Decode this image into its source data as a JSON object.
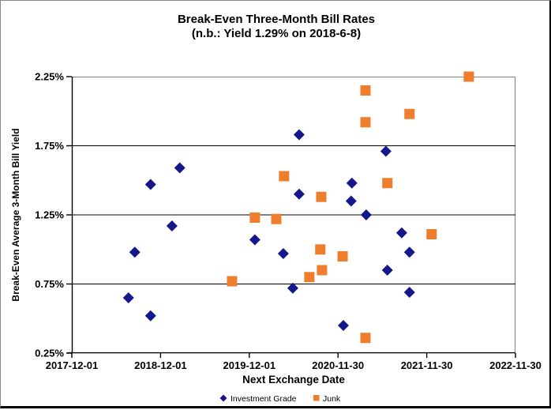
{
  "chart_data": {
    "type": "scatter",
    "title": "Break-Even Three-Month Bill Rates",
    "subtitle": "(n.b.: Yield 1.29% on 2018-6-8)",
    "xlabel": "Next Exchange Date",
    "ylabel": "Break-Even Average 3-Month Bill Yield",
    "grid": "horizontal",
    "legend_position": "bottom",
    "background_color": "#ffffff",
    "plot_border_color": "#808080",
    "gridline_color": "#000000",
    "x_axis": {
      "type": "date",
      "min": "2017-12-01",
      "max": "2022-11-30",
      "ticks": [
        "2017-12-01",
        "2018-12-01",
        "2019-12-01",
        "2020-11-30",
        "2021-11-30",
        "2022-11-30"
      ]
    },
    "y_axis": {
      "min": 0.25,
      "max": 2.25,
      "ticks": [
        "2.25%",
        "1.75%",
        "1.25%",
        "0.75%",
        "0.25%"
      ],
      "tick_values": [
        2.25,
        1.75,
        1.25,
        0.75,
        0.25
      ]
    },
    "series": [
      {
        "name": "Investment Grade",
        "marker": "diamond",
        "color": "#17178C",
        "points": [
          {
            "date": "2018-07-22",
            "yield_pct": 0.65
          },
          {
            "date": "2018-08-17",
            "yield_pct": 0.98
          },
          {
            "date": "2018-10-21",
            "yield_pct": 1.47
          },
          {
            "date": "2018-10-21",
            "yield_pct": 0.52
          },
          {
            "date": "2019-01-17",
            "yield_pct": 1.17
          },
          {
            "date": "2019-02-18",
            "yield_pct": 1.59
          },
          {
            "date": "2019-12-24",
            "yield_pct": 1.07
          },
          {
            "date": "2020-04-19",
            "yield_pct": 0.97
          },
          {
            "date": "2020-05-28",
            "yield_pct": 0.72
          },
          {
            "date": "2020-06-23",
            "yield_pct": 1.83
          },
          {
            "date": "2020-06-23",
            "yield_pct": 1.4
          },
          {
            "date": "2020-12-22",
            "yield_pct": 0.45
          },
          {
            "date": "2021-01-23",
            "yield_pct": 1.35
          },
          {
            "date": "2021-01-26",
            "yield_pct": 1.48
          },
          {
            "date": "2021-03-26",
            "yield_pct": 1.25
          },
          {
            "date": "2021-06-15",
            "yield_pct": 1.71
          },
          {
            "date": "2021-06-21",
            "yield_pct": 0.85
          },
          {
            "date": "2021-08-19",
            "yield_pct": 1.12
          },
          {
            "date": "2021-09-20",
            "yield_pct": 0.98
          },
          {
            "date": "2021-09-20",
            "yield_pct": 0.69
          }
        ]
      },
      {
        "name": "Junk",
        "marker": "square",
        "color": "#EE7E2E",
        "points": [
          {
            "date": "2019-09-21",
            "yield_pct": 0.77
          },
          {
            "date": "2019-12-24",
            "yield_pct": 1.23
          },
          {
            "date": "2020-03-21",
            "yield_pct": 1.22
          },
          {
            "date": "2020-04-22",
            "yield_pct": 1.53
          },
          {
            "date": "2020-08-04",
            "yield_pct": 0.8
          },
          {
            "date": "2020-09-18",
            "yield_pct": 1.0
          },
          {
            "date": "2020-09-22",
            "yield_pct": 1.38
          },
          {
            "date": "2020-09-25",
            "yield_pct": 0.85
          },
          {
            "date": "2020-12-19",
            "yield_pct": 0.95
          },
          {
            "date": "2021-03-23",
            "yield_pct": 2.15
          },
          {
            "date": "2021-03-23",
            "yield_pct": 1.92
          },
          {
            "date": "2021-03-23",
            "yield_pct": 0.36
          },
          {
            "date": "2021-06-21",
            "yield_pct": 1.48
          },
          {
            "date": "2021-09-20",
            "yield_pct": 1.98
          },
          {
            "date": "2021-12-20",
            "yield_pct": 1.11
          },
          {
            "date": "2022-05-22",
            "yield_pct": 2.25
          }
        ]
      }
    ]
  }
}
